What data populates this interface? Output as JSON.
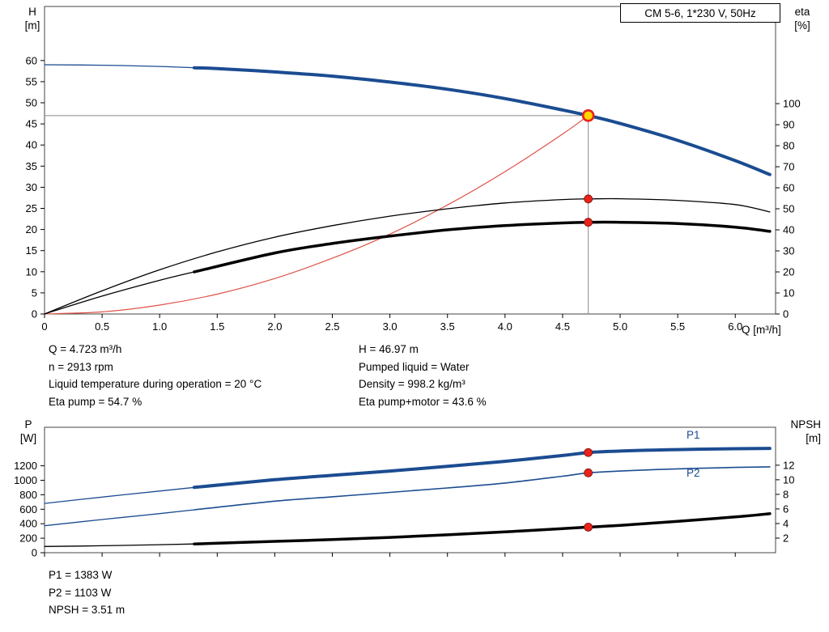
{
  "title_box": "CM 5-6, 1*230 V, 50Hz",
  "axis_titles": {
    "head_left": "H\n[m]",
    "head_right": "eta\n[%]",
    "x": "Q [m³/h]",
    "power_left": "P\n[W]",
    "power_right": "NPSH\n[m]"
  },
  "curve_labels": {
    "p1": "P1",
    "p2": "P2"
  },
  "info_top": {
    "left": [
      "Q = 4.723 m³/h",
      "n = 2913 rpm",
      "Liquid temperature during operation = 20 °C",
      "Eta pump = 54.7 %"
    ],
    "right": [
      "H = 46.97 m",
      "Pumped liquid = Water",
      "Density = 998.2 kg/m³",
      "Eta pump+motor = 43.6 %"
    ]
  },
  "info_bottom": [
    "P1 = 1383 W",
    "P2 = 1103 W",
    "NPSH = 3.51 m"
  ],
  "colors": {
    "pump_blue": "#1b4c91",
    "curve_black": "#000000",
    "system_red": "#df5248",
    "dot_red": "#e8231a",
    "duty_yellow": "#ffd400",
    "guide_gray": "#8a8a8a"
  },
  "chart_data": [
    {
      "id": "head",
      "type": "line",
      "title": "CM 5-6, 1*230 V, 50Hz",
      "x_label": "Q [m³/h]",
      "x_range": [
        0,
        6.35
      ],
      "x_ticks": [
        0,
        0.5,
        1,
        1.5,
        2,
        2.5,
        3,
        3.5,
        4,
        4.5,
        5,
        5.5,
        6
      ],
      "x_tick_labels": [
        "0",
        "0.5",
        "1.0",
        "1.5",
        "2.0",
        "2.5",
        "3.0",
        "3.5",
        "4.0",
        "4.5",
        "5.0",
        "5.5",
        "6.0"
      ],
      "y_left": {
        "label": "H [m]",
        "range": [
          0,
          72.8
        ],
        "ticks": [
          0,
          5,
          10,
          15,
          20,
          25,
          30,
          35,
          40,
          45,
          50,
          55,
          60
        ],
        "tick_labels": [
          "0",
          "5",
          "10",
          "15",
          "20",
          "25",
          "30",
          "35",
          "40",
          "45",
          "50",
          "55",
          "60"
        ]
      },
      "y_right": {
        "label": "eta [%]",
        "range": [
          0,
          146.2
        ],
        "ticks": [
          0,
          10,
          20,
          30,
          40,
          50,
          60,
          70,
          80,
          90,
          100
        ],
        "tick_labels": [
          "0",
          "10",
          "20",
          "30",
          "40",
          "50",
          "60",
          "70",
          "80",
          "90",
          "100"
        ]
      },
      "duty_point": {
        "Q": 4.723,
        "H": 46.97,
        "eta_pump": 54.7,
        "eta_pump_motor": 43.6
      },
      "guides": [
        {
          "type": "h",
          "axis": "left",
          "y": 46.97,
          "x1": 0,
          "x2": 4.723
        },
        {
          "type": "v",
          "axis": "left",
          "x": 4.723,
          "y1": 0,
          "y2": 46.97
        }
      ],
      "series": [
        {
          "name": "system-curve",
          "axis": "left",
          "color": "#df5248",
          "width": 1.2,
          "x": [
            0,
            0.5,
            1,
            1.5,
            2,
            2.5,
            3,
            3.5,
            4,
            4.5,
            4.723
          ],
          "y": [
            0,
            0.5,
            2.1,
            4.7,
            8.4,
            13.2,
            18.9,
            25.8,
            33.7,
            42.6,
            46.97
          ]
        },
        {
          "name": "eta-pump-curve",
          "axis": "right",
          "color": "#000000",
          "width": 1.3,
          "x": [
            0,
            0.5,
            1,
            1.5,
            2,
            2.5,
            3,
            3.5,
            4,
            4.5,
            4.723,
            5,
            5.5,
            6,
            6.3
          ],
          "y": [
            0,
            11,
            21,
            29.5,
            36.5,
            42,
            46.5,
            50,
            52.8,
            54.4,
            54.7,
            54.8,
            54,
            52,
            48.5
          ]
        },
        {
          "name": "eta-pump-motor-lowflow",
          "axis": "right",
          "color": "#000000",
          "width": 1.3,
          "x": [
            0,
            0.5,
            1,
            1.3
          ],
          "y": [
            0,
            8.5,
            16,
            20
          ]
        },
        {
          "name": "eta-pump-motor-curve",
          "axis": "right",
          "color": "#000000",
          "width": 3.5,
          "x": [
            1.3,
            2,
            2.5,
            3,
            3.5,
            4,
            4.5,
            4.723,
            5,
            5.5,
            6,
            6.3
          ],
          "y": [
            20,
            29,
            33.5,
            37,
            40,
            42,
            43.3,
            43.6,
            43.6,
            43,
            41.3,
            39.3
          ]
        },
        {
          "name": "head-curve-lowflow",
          "axis": "left",
          "color": "#1b4c91",
          "width": 1.3,
          "x": [
            0,
            0.5,
            1,
            1.3
          ],
          "y": [
            59,
            58.9,
            58.6,
            58.3
          ]
        },
        {
          "name": "head-curve",
          "axis": "left",
          "color": "#1b4c91",
          "width": 4,
          "x": [
            1.3,
            1.5,
            2,
            2.5,
            3,
            3.5,
            4,
            4.5,
            4.723,
            5,
            5.5,
            6,
            6.3
          ],
          "y": [
            58.3,
            58.1,
            57.3,
            56.3,
            54.9,
            53.2,
            51.0,
            48.3,
            46.97,
            45.1,
            41.1,
            36.3,
            33.0
          ]
        }
      ],
      "markers": [
        {
          "kind": "dot",
          "axis": "right",
          "x": 4.723,
          "y": 54.7
        },
        {
          "kind": "dot",
          "axis": "right",
          "x": 4.723,
          "y": 43.6
        },
        {
          "kind": "duty",
          "axis": "left",
          "x": 4.723,
          "y": 46.97
        }
      ]
    },
    {
      "id": "power",
      "type": "line",
      "x_label": "",
      "x_range": [
        0,
        6.35
      ],
      "x_ticks": [
        0,
        0.5,
        1,
        1.5,
        2,
        2.5,
        3,
        3.5,
        4,
        4.5,
        5,
        5.5,
        6
      ],
      "x_tick_labels": [],
      "y_left": {
        "label": "P [W]",
        "range": [
          0,
          1732
        ],
        "ticks": [
          0,
          200,
          400,
          600,
          800,
          1000,
          1200
        ],
        "tick_labels": [
          "0",
          "200",
          "400",
          "600",
          "800",
          "1000",
          "1200"
        ]
      },
      "y_right": {
        "label": "NPSH [m]",
        "range": [
          0,
          17.2
        ],
        "ticks": [
          2,
          4,
          6,
          8,
          10,
          12
        ],
        "tick_labels": [
          "2",
          "4",
          "6",
          "8",
          "10",
          "12"
        ]
      },
      "duty_point": {
        "Q": 4.723,
        "P1": 1383,
        "P2": 1103,
        "NPSH": 3.51
      },
      "guides": [],
      "series": [
        {
          "name": "npsh-curve-lowflow",
          "axis": "right",
          "color": "#000000",
          "width": 1.3,
          "x": [
            0,
            0.5,
            1,
            1.3
          ],
          "y": [
            0.85,
            0.95,
            1.1,
            1.2
          ]
        },
        {
          "name": "npsh-curve",
          "axis": "right",
          "color": "#000000",
          "width": 3.5,
          "x": [
            1.3,
            2,
            2.5,
            3,
            3.5,
            4,
            4.5,
            4.723,
            5,
            5.5,
            6,
            6.3
          ],
          "y": [
            1.2,
            1.55,
            1.8,
            2.1,
            2.45,
            2.85,
            3.3,
            3.51,
            3.75,
            4.3,
            4.9,
            5.35
          ]
        },
        {
          "name": "p2-curve-lowflow",
          "axis": "left",
          "color": "#1b4c91",
          "width": 1.3,
          "x": [
            0,
            0.5,
            1,
            1.3
          ],
          "y": [
            372,
            458,
            540,
            592
          ]
        },
        {
          "name": "p2-curve",
          "axis": "left",
          "color": "#1b4c91",
          "width": 1.6,
          "x": [
            1.3,
            2,
            2.5,
            3,
            3.5,
            4,
            4.5,
            4.723,
            5,
            5.5,
            6,
            6.3
          ],
          "y": [
            592,
            712,
            772,
            832,
            894,
            962,
            1056,
            1103,
            1128,
            1158,
            1178,
            1186
          ]
        },
        {
          "name": "p1-curve-lowflow",
          "axis": "left",
          "color": "#1b4c91",
          "width": 1.3,
          "x": [
            0,
            0.5,
            1,
            1.3
          ],
          "y": [
            680,
            768,
            852,
            902
          ]
        },
        {
          "name": "p1-curve",
          "axis": "left",
          "color": "#1b4c91",
          "width": 4,
          "x": [
            1.3,
            2,
            2.5,
            3,
            3.5,
            4,
            4.5,
            4.723,
            5,
            5.5,
            6,
            6.3
          ],
          "y": [
            902,
            1008,
            1068,
            1128,
            1192,
            1262,
            1342,
            1383,
            1404,
            1424,
            1436,
            1440
          ]
        }
      ],
      "markers": [
        {
          "kind": "dot",
          "axis": "left",
          "x": 4.723,
          "y": 1383
        },
        {
          "kind": "dot",
          "axis": "left",
          "x": 4.723,
          "y": 1103
        },
        {
          "kind": "dot",
          "axis": "right",
          "x": 4.723,
          "y": 3.51
        }
      ]
    }
  ]
}
